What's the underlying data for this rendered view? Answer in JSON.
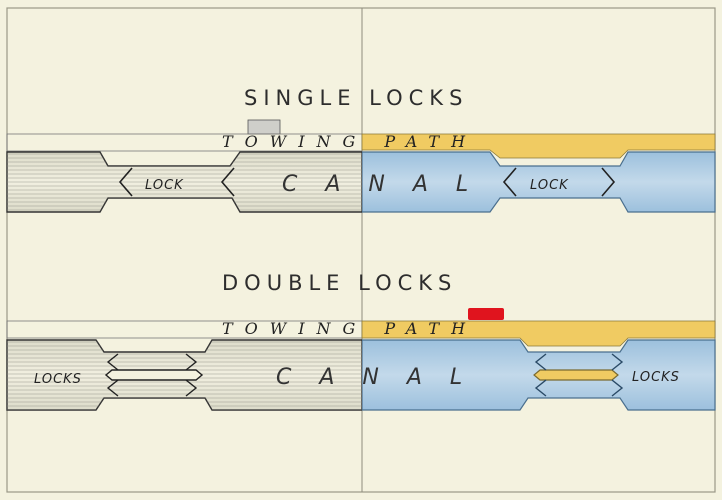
{
  "figure": {
    "top": {
      "title": "SINGLE LOCKS",
      "path_label": "TOWING PATH",
      "canal_label": "CANAL",
      "lock_left": "LOCK",
      "lock_right": "LOCK"
    },
    "bottom": {
      "title": "DOUBLE LOCKS",
      "path_label": "TOWING PATH",
      "canal_label": "CANAL",
      "lock_left": "LOCKS",
      "lock_right": "LOCKS"
    }
  },
  "colors": {
    "paper": "#f4f2df",
    "water_uncoloured": "#e6e5d6",
    "water_coloured": "#a9c7df",
    "towing_path": "#f0cb62",
    "hatching": "#3a3a3a",
    "marker_red": "#e0141e",
    "marker_grey": "#cfcfca"
  }
}
